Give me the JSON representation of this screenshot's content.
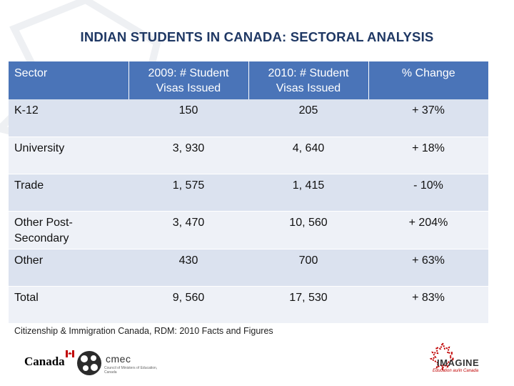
{
  "title": "INDIAN STUDENTS IN CANADA: SECTORAL ANALYSIS",
  "table": {
    "headers": [
      "Sector",
      "2009: # Student Visas Issued",
      "2010: # Student Visas Issued",
      "% Change"
    ],
    "rows": [
      {
        "sector": "K-12",
        "y2009": "150",
        "y2010": "205",
        "change": "+ 37%"
      },
      {
        "sector": "University",
        "y2009": "3, 930",
        "y2010": "4, 640",
        "change": "+ 18%"
      },
      {
        "sector": "Trade",
        "y2009": "1, 575",
        "y2010": "1, 415",
        "change": "- 10%"
      },
      {
        "sector": "Other Post-Secondary",
        "y2009": "3, 470",
        "y2010": "10, 560",
        "change": "+ 204%"
      },
      {
        "sector": "Other",
        "y2009": "430",
        "y2010": "700",
        "change": "+ 63%"
      },
      {
        "sector": "Total",
        "y2009": "9, 560",
        "y2010": "17, 530",
        "change": "+ 83%"
      }
    ]
  },
  "source": "Citizenship & Immigration Canada, RDM: 2010 Facts and Figures",
  "logos": {
    "canada": "Canada",
    "cmec": "cmec",
    "cmec_small": "Council of Ministers of Education, Canada",
    "imagine": "IMAGINE",
    "imagine_sub": "Education au/in Canada"
  },
  "colors": {
    "title": "#1f3864",
    "header_bg": "#4a74b8",
    "row_alt": "#dbe2ef",
    "row_plain": "#eef1f7",
    "accent_red": "#c00000"
  }
}
